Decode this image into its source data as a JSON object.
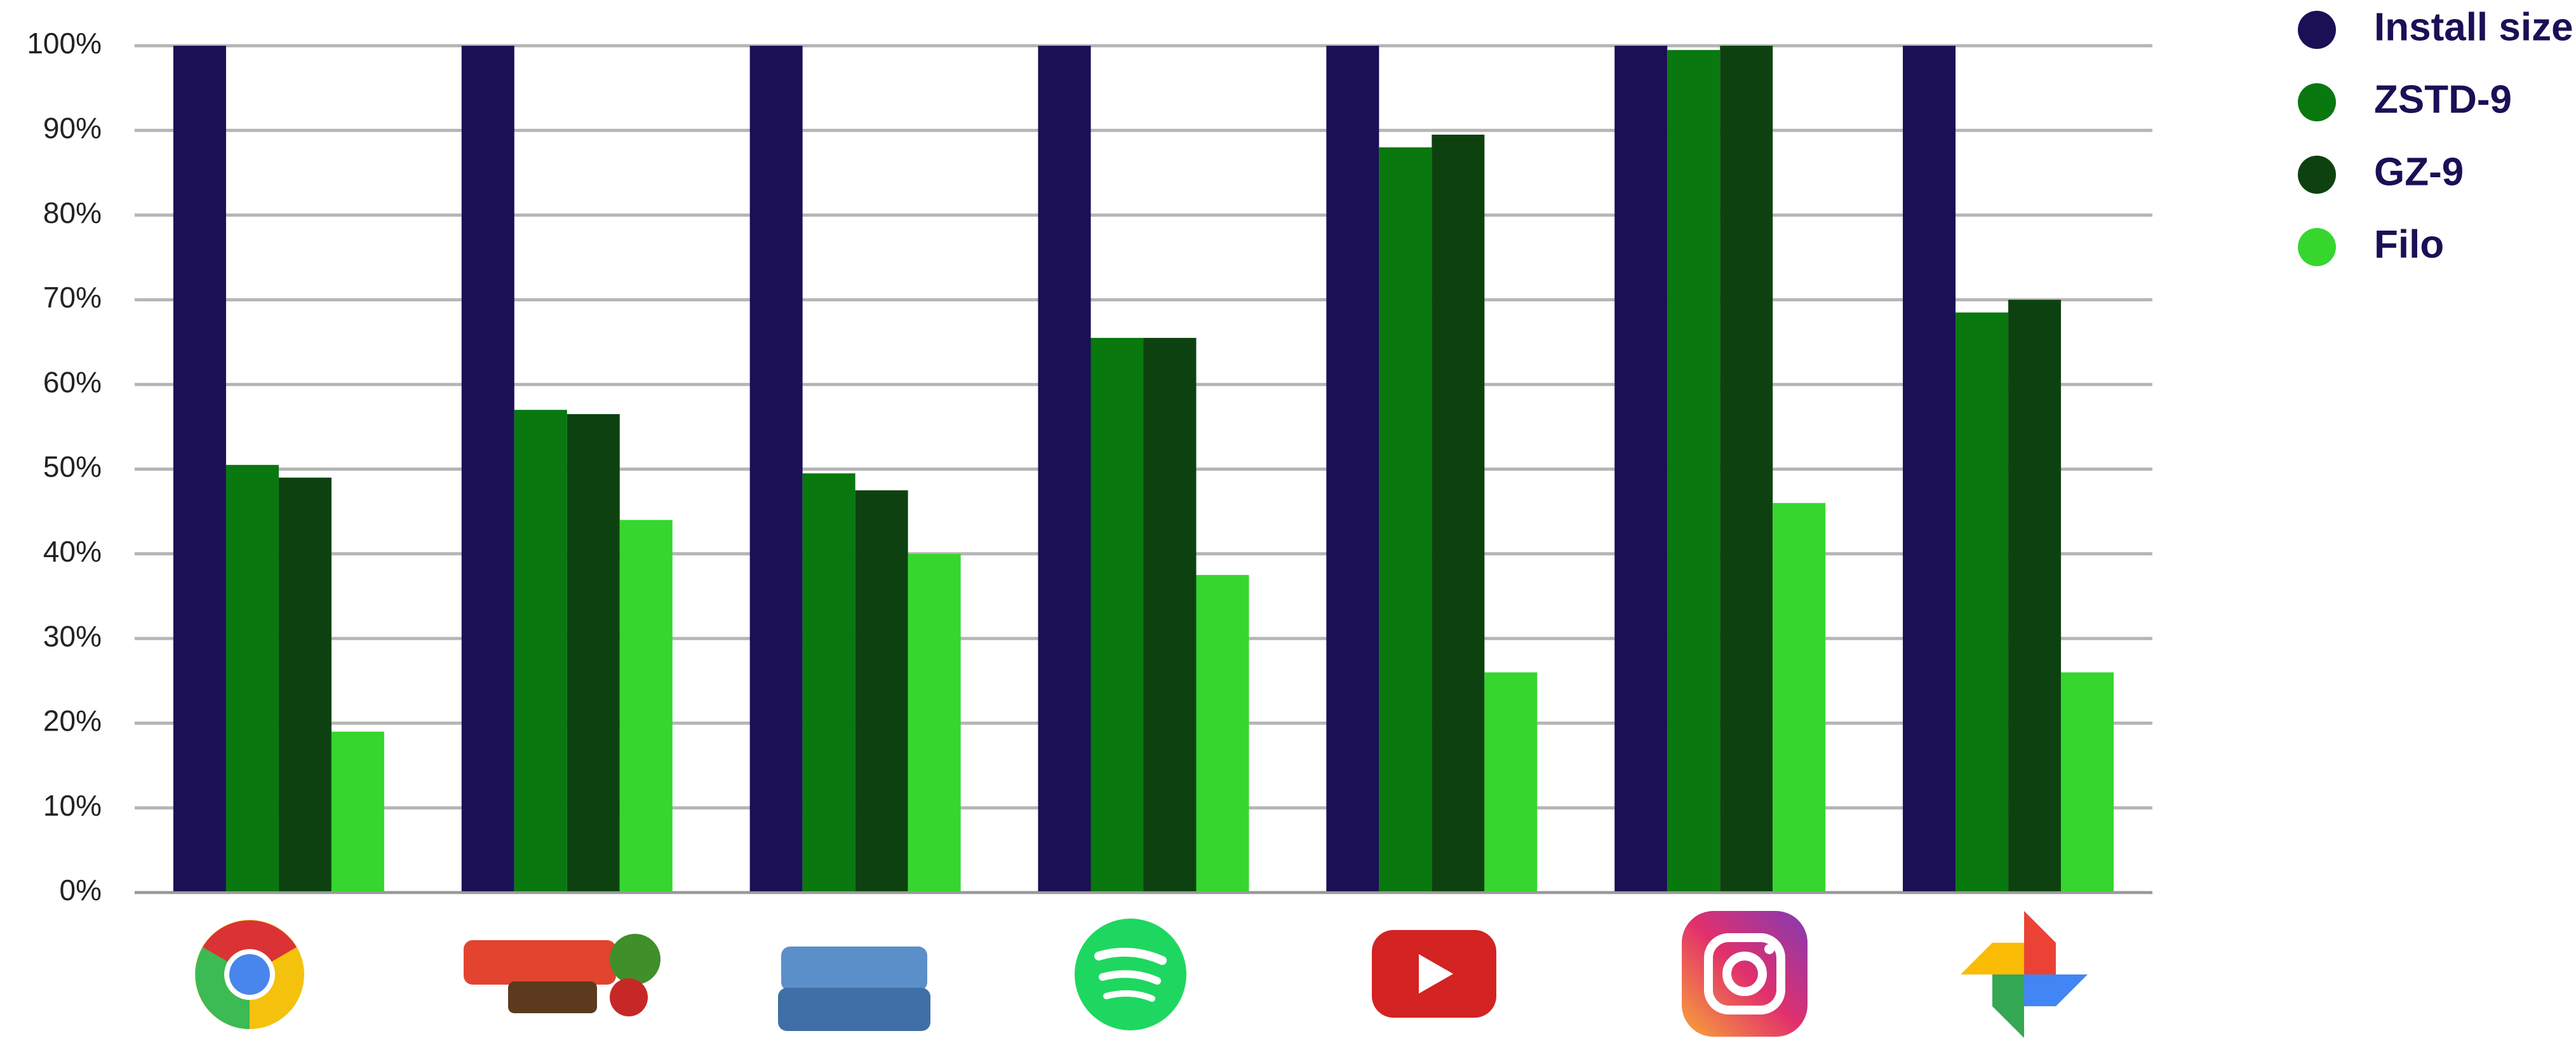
{
  "chart_data": {
    "type": "bar",
    "categories": [
      null,
      null,
      null,
      null,
      null,
      null,
      null
    ],
    "series": [
      {
        "name": "Install size",
        "color": "#1b1056",
        "values": [
          100,
          100,
          100,
          100,
          100,
          100,
          100
        ]
      },
      {
        "name": "ZSTD-9",
        "color": "#08780f",
        "values": [
          50.5,
          57,
          49.5,
          65.5,
          88,
          99.5,
          68.5
        ]
      },
      {
        "name": "GZ-9",
        "color": "#0d4210",
        "values": [
          49,
          56.5,
          47.5,
          65.5,
          89.5,
          100,
          70
        ]
      },
      {
        "name": "Filo",
        "color": "#36d62f",
        "values": [
          19,
          44,
          40,
          37.5,
          26,
          46,
          26
        ]
      }
    ],
    "ylim": [
      0,
      100
    ],
    "yticks": [
      {
        "value": 0,
        "label": "0%"
      },
      {
        "value": 10,
        "label": "10%"
      },
      {
        "value": 20,
        "label": "20%"
      },
      {
        "value": 30,
        "label": "30%"
      },
      {
        "value": 40,
        "label": "40%"
      },
      {
        "value": 50,
        "label": "50%"
      },
      {
        "value": 60,
        "label": "60%"
      },
      {
        "value": 70,
        "label": "70%"
      },
      {
        "value": 80,
        "label": "80%"
      },
      {
        "value": 90,
        "label": "90%"
      },
      {
        "value": 100,
        "label": "100%"
      }
    ],
    "grid": true,
    "legend": "upper right"
  }
}
